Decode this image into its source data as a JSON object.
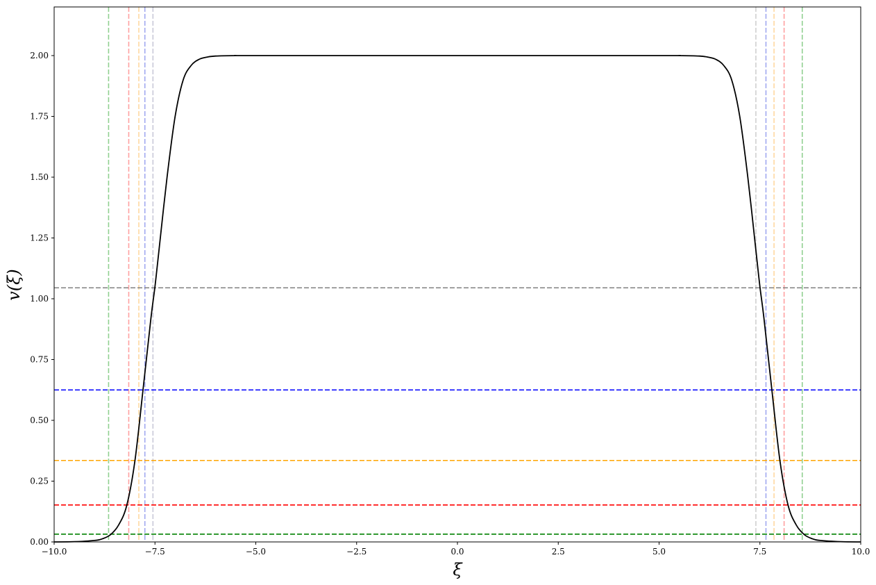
{
  "chart_data": {
    "type": "line",
    "title": "",
    "xlabel": "ξ",
    "ylabel": "v(ξ)",
    "xlim": [
      -10.0,
      10.0
    ],
    "ylim": [
      0.0,
      2.2
    ],
    "grid": false,
    "x_ticks": [
      -10.0,
      -7.5,
      -5.0,
      -2.5,
      0.0,
      2.5,
      5.0,
      7.5,
      10.0
    ],
    "x_tick_labels": [
      "−10.0",
      "−7.5",
      "−5.0",
      "−2.5",
      "0.0",
      "2.5",
      "5.0",
      "7.5",
      "10.0"
    ],
    "y_ticks": [
      0.0,
      0.25,
      0.5,
      0.75,
      1.0,
      1.25,
      1.5,
      1.75,
      2.0
    ],
    "y_tick_labels": [
      "0.00",
      "0.25",
      "0.50",
      "0.75",
      "1.00",
      "1.25",
      "1.50",
      "1.75",
      "2.00"
    ],
    "series": [
      {
        "color": "#000000",
        "style": "solid",
        "x": [
          -10.0,
          -9.5,
          -9.0,
          -8.8,
          -8.6,
          -8.4,
          -8.2,
          -8.0,
          -7.8,
          -7.6,
          -7.5,
          -7.4,
          -7.2,
          -7.0,
          -6.8,
          -6.6,
          -6.4,
          -6.2,
          -6.0,
          -5.5,
          -5.0,
          0.0,
          5.0,
          5.5,
          6.0,
          6.2,
          6.4,
          6.6,
          6.8,
          7.0,
          7.2,
          7.4,
          7.5,
          7.6,
          7.8,
          8.0,
          8.2,
          8.4,
          8.6,
          8.8,
          9.0,
          9.5,
          10.0
        ],
        "y": [
          0.0,
          0.001,
          0.006,
          0.013,
          0.03,
          0.07,
          0.15,
          0.33,
          0.62,
          0.92,
          1.05,
          1.2,
          1.5,
          1.75,
          1.9,
          1.96,
          1.985,
          1.994,
          1.998,
          2.0,
          2.0,
          2.0,
          2.0,
          2.0,
          1.998,
          1.994,
          1.985,
          1.96,
          1.9,
          1.75,
          1.5,
          1.2,
          1.05,
          0.92,
          0.62,
          0.33,
          0.15,
          0.07,
          0.03,
          0.013,
          0.006,
          0.001,
          0.0
        ]
      }
    ],
    "horizontal_lines": [
      {
        "y": 1.045,
        "color": "#808080"
      },
      {
        "y": 0.625,
        "color": "#0000ff"
      },
      {
        "y": 0.335,
        "color": "#ffa500"
      },
      {
        "y": 0.152,
        "color": "#ff0000"
      },
      {
        "y": 0.032,
        "color": "#008000"
      }
    ],
    "vertical_lines": [
      {
        "x": -8.65,
        "color": "#90d090"
      },
      {
        "x": -8.15,
        "color": "#ffa0a0"
      },
      {
        "x": -7.9,
        "color": "#ffd8a0"
      },
      {
        "x": -7.75,
        "color": "#a0a8f0"
      },
      {
        "x": -7.55,
        "color": "#c8c8d8"
      },
      {
        "x": 7.4,
        "color": "#d0d0d0"
      },
      {
        "x": 7.65,
        "color": "#a0a8f0"
      },
      {
        "x": 7.85,
        "color": "#ffd8a0"
      },
      {
        "x": 8.1,
        "color": "#ffa0a0"
      },
      {
        "x": 8.55,
        "color": "#90d090"
      }
    ]
  }
}
